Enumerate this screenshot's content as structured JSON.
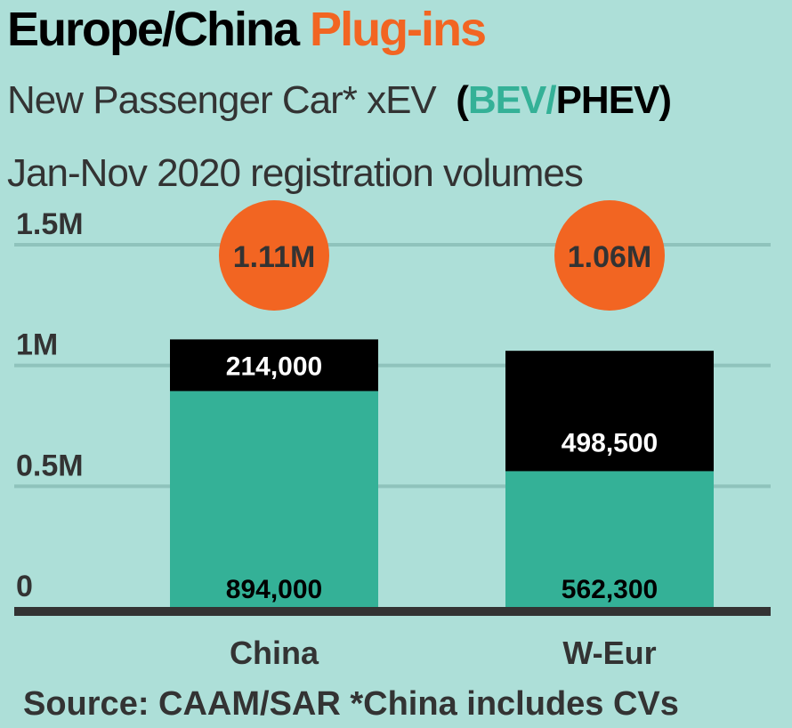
{
  "header": {
    "title_main": "Europe/China",
    "title_accent": "Plug-ins",
    "subtitle_prefix": "New Passenger Car* xEV",
    "paren_open": "(",
    "bev": "BEV/",
    "phev": "PHEV",
    "paren_close": ")",
    "subtitle2": "Jan-Nov 2020 registration volumes"
  },
  "footer": {
    "source": "Source: CAAM/SAR *China includes CVs"
  },
  "colors": {
    "background": "#addfd8",
    "bev": "#34b197",
    "phev": "#000000",
    "total_circle": "#f26522",
    "gridline": "#8fc3bc",
    "axis": "#333333"
  },
  "chart_data": {
    "type": "bar",
    "stacked": true,
    "title": "Europe/China Plug-ins",
    "subtitle": "New Passenger Car* xEV (BEV/PHEV) Jan-Nov 2020 registration volumes",
    "categories": [
      "China",
      "W-Eur"
    ],
    "series": [
      {
        "name": "BEV",
        "values": [
          894000,
          562300
        ],
        "labels": [
          "894,000",
          "562,300"
        ]
      },
      {
        "name": "PHEV",
        "values": [
          214000,
          498500
        ],
        "labels": [
          "214,000",
          "498,500"
        ]
      }
    ],
    "totals": [
      "1.11M",
      "1.06M"
    ],
    "yticks": [
      {
        "value": 0,
        "label": "0"
      },
      {
        "value": 500000,
        "label": "0.5M"
      },
      {
        "value": 1000000,
        "label": "1M"
      },
      {
        "value": 1500000,
        "label": "1.5M"
      }
    ],
    "ylim": [
      0,
      1500000
    ],
    "grid": true,
    "legend": "in subtitle"
  }
}
